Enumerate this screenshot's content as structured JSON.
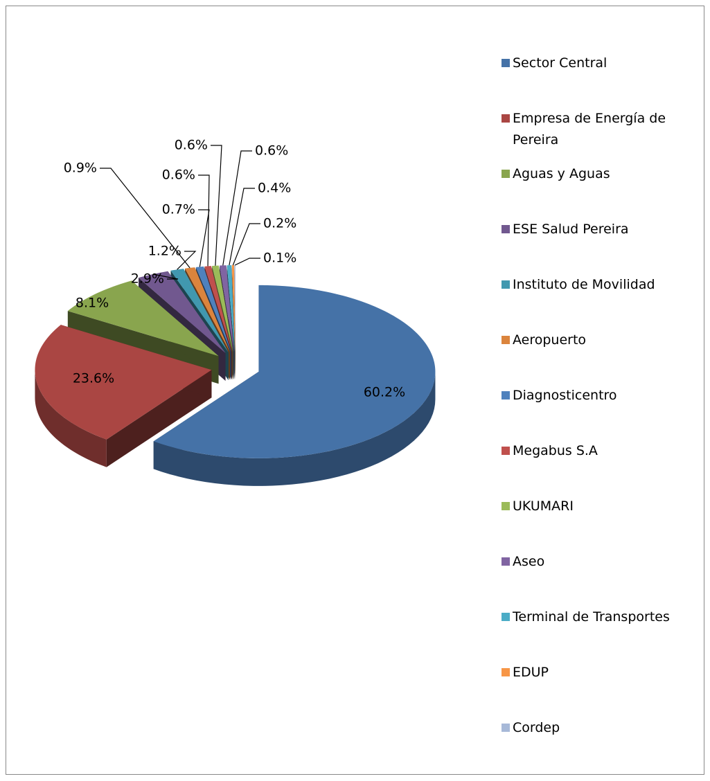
{
  "chart_data": {
    "type": "pie3d",
    "categories": [
      "Sector Central",
      "Empresa de Energía de Pereira",
      "Aguas y Aguas",
      "ESE Salud Pereira",
      "Instituto de Movilidad",
      "Aeropuerto",
      "Diagnosticentro",
      "Megabus S.A",
      "UKUMARI",
      "Aseo",
      "Terminal de Transportes",
      "EDUP",
      "Cordep"
    ],
    "values": [
      60.2,
      23.6,
      8.1,
      2.9,
      1.2,
      0.9,
      0.7,
      0.6,
      0.6,
      0.6,
      0.4,
      0.2,
      0.1
    ],
    "value_labels": [
      "60.2%",
      "23.6%",
      "8.1%",
      "2.9%",
      "1.2%",
      "0.9%",
      "0.7%",
      "0.6%",
      "0.6%",
      "0.6%",
      "0.4%",
      "0.2%",
      "0.1%"
    ],
    "colors": [
      "#4572a7",
      "#aa4643",
      "#89a54e",
      "#71588f",
      "#4198af",
      "#db843d",
      "#4f81bd",
      "#c0504d",
      "#9bbb59",
      "#8064a2",
      "#4bacc6",
      "#f79646",
      "#a7b9d8"
    ],
    "legend": "right"
  }
}
